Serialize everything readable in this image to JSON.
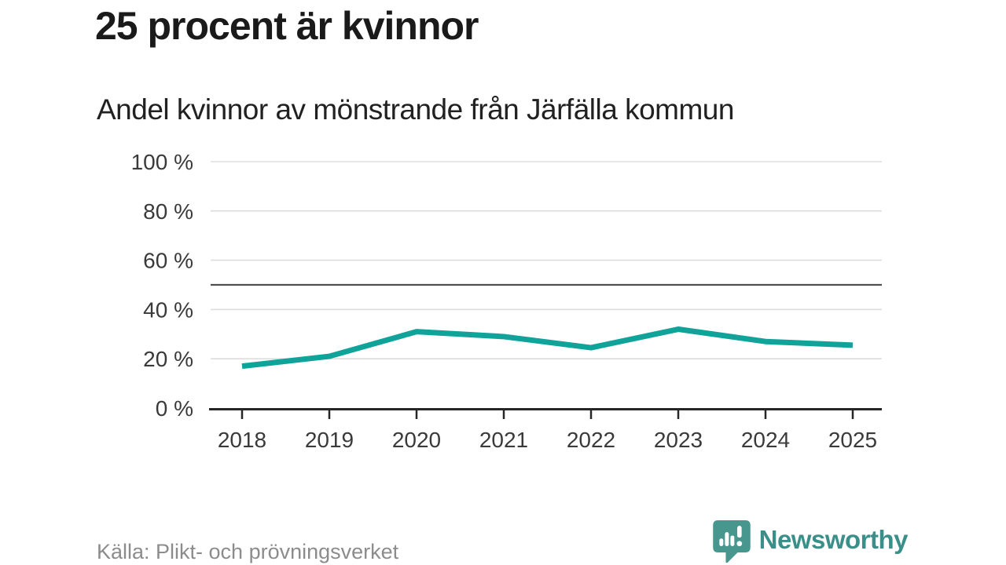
{
  "chart_data": {
    "type": "line",
    "title": "25 procent är kvinnor",
    "subtitle": "Andel kvinnor av mönstrande från Järfälla kommun",
    "x": [
      2018,
      2019,
      2020,
      2021,
      2022,
      2023,
      2024,
      2025
    ],
    "series": [
      {
        "name": "Andel kvinnor av mönstrande",
        "values": [
          17,
          21,
          31,
          29,
          24.5,
          32,
          27,
          25.5
        ]
      }
    ],
    "xlabel": "",
    "ylabel": "",
    "ylim": [
      0,
      100
    ],
    "yticks": [
      0,
      20,
      40,
      60,
      80,
      100
    ],
    "ytick_suffix": " %",
    "reference_line": 50,
    "grid": true,
    "legend": false,
    "line_color": "#10a39a",
    "reference_line_color": "#4f4f4f",
    "gridline_color": "#dedede",
    "axis_color": "#262626",
    "tick_label_color": "#3a3a3a"
  },
  "footer": {
    "source": "Källa: Plikt- och prövningsverket",
    "brand": "Newsworthy"
  },
  "brand_colors": {
    "bubble": "#47978f",
    "wordmark": "#3a9089"
  }
}
